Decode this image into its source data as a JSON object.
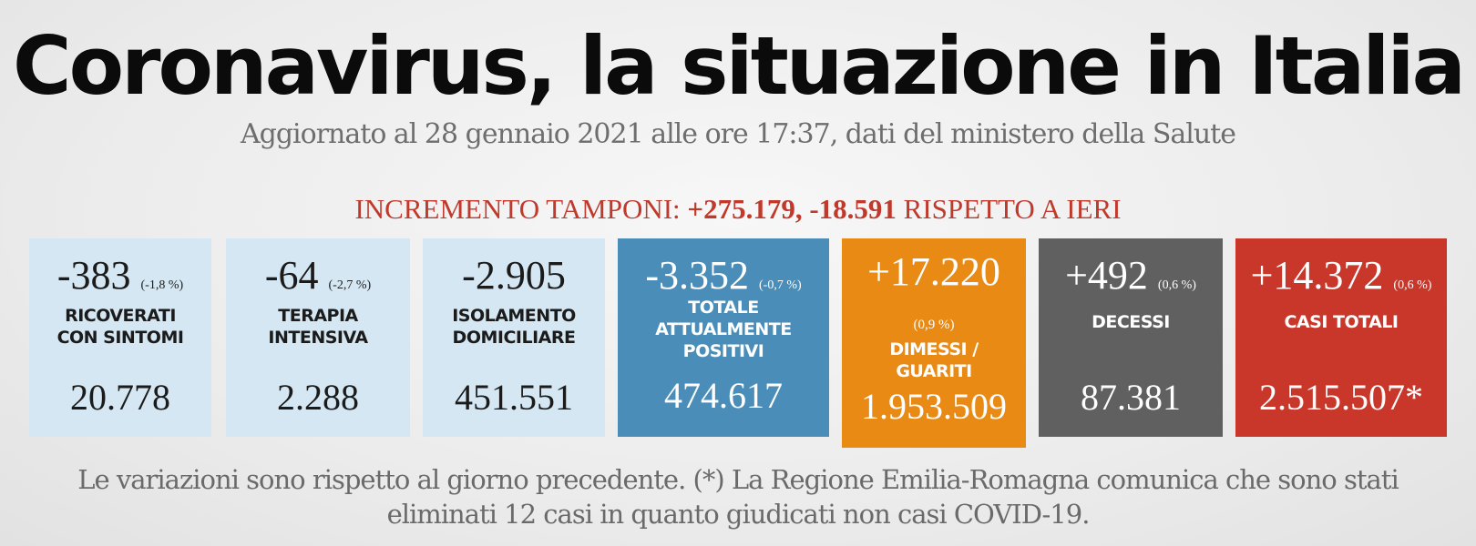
{
  "header": {
    "title": "Coronavirus, la situazione in Italia",
    "subtitle": "Aggiornato al 28 gennaio 2021 alle ore 17:37, dati del ministero della Salute"
  },
  "tamponi": {
    "prefix": "INCREMENTO TAMPONI: ",
    "increment": "+275.179, -18.591",
    "suffix": " RISPETTO A IERI"
  },
  "cards": [
    {
      "delta": "-383",
      "pct": "(-1,8 %)",
      "label_line1": "RICOVERATI",
      "label_line2": "CON SINTOMI",
      "total": "20.778"
    },
    {
      "delta": "-64",
      "pct": "(-2,7 %)",
      "label_line1": "TERAPIA",
      "label_line2": "INTENSIVA",
      "total": "2.288"
    },
    {
      "delta": "-2.905",
      "label_line1": "ISOLAMENTO",
      "label_line2": "DOMICILIARE",
      "total": "451.551"
    },
    {
      "delta": "-3.352",
      "pct": "(-0,7 %)",
      "label_line1": "TOTALE",
      "label_line2": "ATTUALMENTE",
      "label_line3": "POSITIVI",
      "total": "474.617"
    },
    {
      "delta": "+17.220",
      "pct": "(0,9 %)",
      "label_line1": "DIMESSI /",
      "label_line2": "GUARITI",
      "total": "1.953.509"
    },
    {
      "delta": "+492",
      "pct": "(0,6 %)",
      "label_line1": "DECESSI",
      "total": "87.381"
    },
    {
      "delta": "+14.372",
      "pct": "(0,6 %)",
      "label_line1": "CASI TOTALI",
      "total": "2.515.507*"
    }
  ],
  "footer": {
    "line1": "Le variazioni sono rispetto al giorno precedente. (*) La Regione Emilia-Romagna comunica che sono stati",
    "line2": "eliminati 12 casi in quanto giudicati non casi COVID-19."
  },
  "colors": {
    "light_blue": "#d4e7f3",
    "blue": "#4a8db8",
    "orange": "#e88a14",
    "gray": "#606060",
    "red": "#c8372a",
    "accent_text": "#c0392b"
  }
}
